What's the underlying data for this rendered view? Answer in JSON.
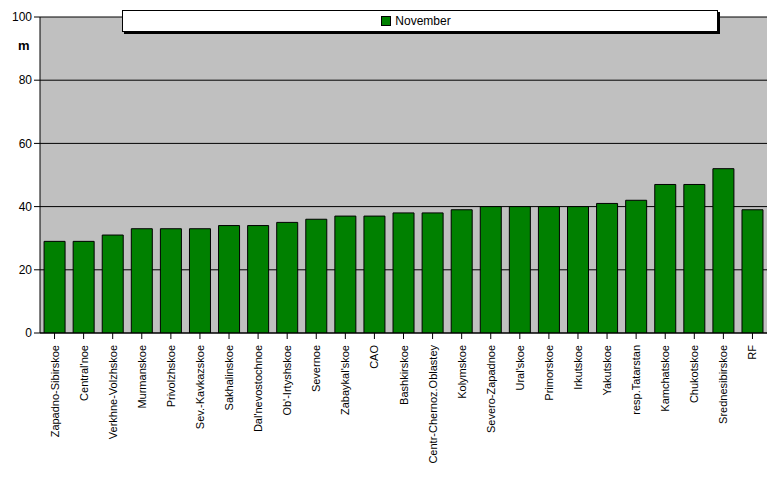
{
  "chart_data": {
    "type": "bar",
    "y_label": "m",
    "categories": [
      "Zapadno-Sibirskoe",
      "Central'noe",
      "Verkhne-Volzhskoe",
      "Murmanskoe",
      "Privolzhskoe",
      "Sev.-Kavkazskoe",
      "Sakhalinskoe",
      "Dal'nevostochnoe",
      "Ob'-Irtyshskoe",
      "Severnoe",
      "Zabaykal'skoe",
      "CAO",
      "Bashkirskoe",
      "Centr-Chernoz.Oblastey",
      "Kolymskoe",
      "Severo-Zapadnoe",
      "Ural'skoe",
      "Primorskoe",
      "Irkutskoe",
      "Yakutskoe",
      "resp.Tatarstan",
      "Kamchatskoe",
      "Chukotskoe",
      "Srednesibirskoe",
      "RF"
    ],
    "series": [
      {
        "name": "November",
        "color": "#008000",
        "values": [
          29,
          29,
          31,
          33,
          33,
          33,
          34,
          34,
          35,
          36,
          37,
          37,
          38,
          38,
          39,
          40,
          40,
          40,
          40,
          41,
          42,
          47,
          47,
          52,
          39
        ]
      }
    ],
    "ylim": [
      0,
      100
    ],
    "yticks": [
      0,
      20,
      40,
      60,
      80,
      100
    ],
    "grid": true,
    "legend": "top"
  }
}
